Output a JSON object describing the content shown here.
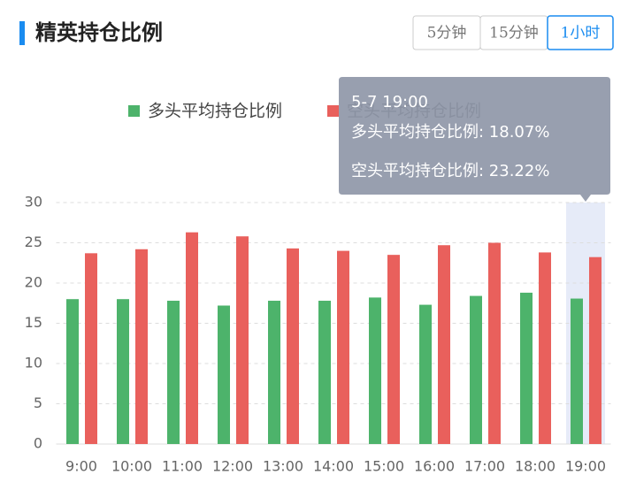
{
  "header": {
    "title": "精英持仓比例",
    "tabs": [
      "5分钟",
      "15分钟",
      "1小时"
    ],
    "active_tab": 2
  },
  "chart_data": {
    "type": "bar",
    "categories": [
      "9:00",
      "10:00",
      "11:00",
      "12:00",
      "13:00",
      "14:00",
      "15:00",
      "16:00",
      "17:00",
      "18:00",
      "19:00"
    ],
    "series": [
      {
        "name": "多头平均持仓比例",
        "color": "#4db36b",
        "values": [
          18,
          18,
          17.8,
          17.2,
          17.8,
          17.8,
          18.2,
          17.3,
          18.4,
          18.8,
          18.07
        ]
      },
      {
        "name": "空头平均持仓比例",
        "color": "#e9605c",
        "values": [
          23.7,
          24.2,
          26.3,
          25.8,
          24.3,
          24,
          23.5,
          24.7,
          25,
          23.8,
          23.22
        ]
      }
    ],
    "ylim": [
      0,
      30
    ],
    "yticks": [
      0,
      5,
      10,
      15,
      20,
      25,
      30
    ],
    "grid": true,
    "highlight_index": 10,
    "tooltip": {
      "title": "5-7 19:00",
      "lines": [
        "多头平均持仓比例: 18.07%",
        "空头平均持仓比例: 23.22%"
      ]
    }
  }
}
